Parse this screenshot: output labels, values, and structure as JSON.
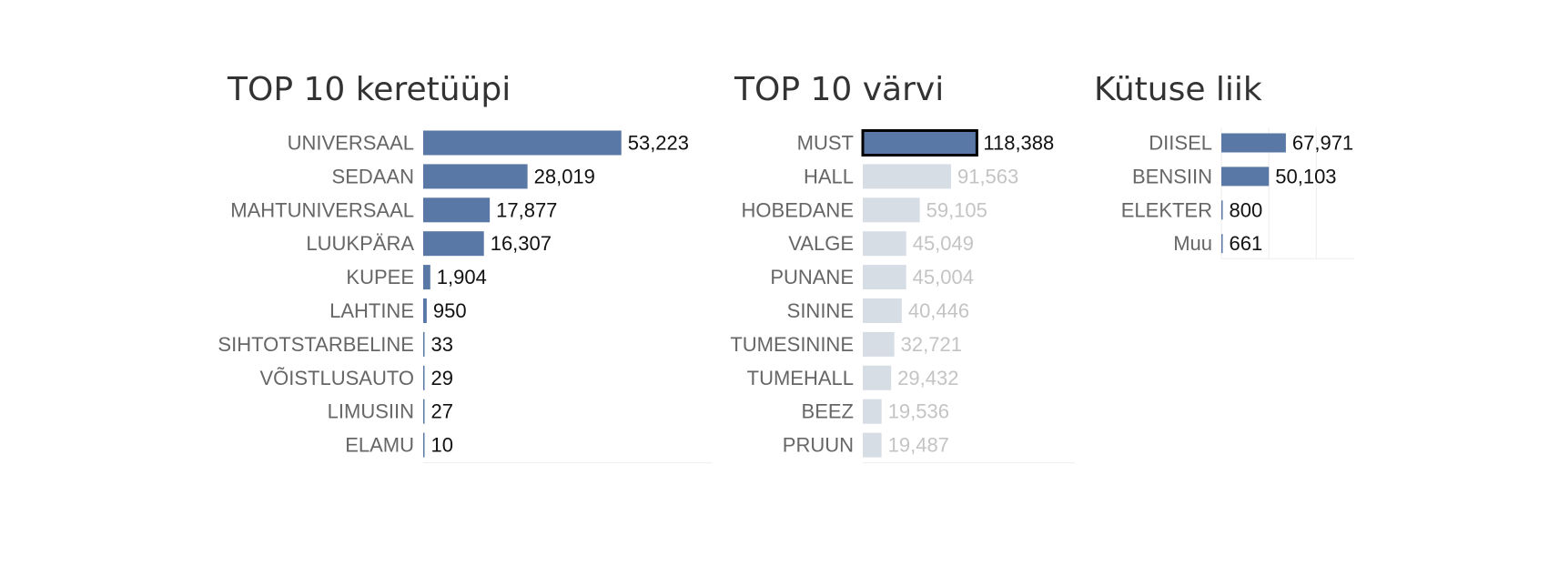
{
  "chart_data": [
    {
      "type": "bar",
      "orientation": "horizontal",
      "title": "TOP 10 keretüüpi",
      "categories": [
        "UNIVERSAAL",
        "SEDAAN",
        "MAHTUNIVERSAAL",
        "LUUKPÄRA",
        "KUPEE",
        "LAHTINE",
        "SIHTOTSTARBELINE",
        "VÕISTLUSAUTO",
        "LIMUSIIN",
        "ELAMU"
      ],
      "values": [
        53223,
        28019,
        17877,
        16307,
        1904,
        950,
        33,
        29,
        27,
        10
      ],
      "labels": [
        "53,223",
        "28,019",
        "17,877",
        "16,307",
        "1,904",
        "950",
        "33",
        "29",
        "27",
        "10"
      ],
      "highlight": [],
      "xlim": [
        0,
        77000
      ],
      "grid": false,
      "colors": {
        "bar": "#5978a5",
        "dim_bar": "#d7dde5"
      }
    },
    {
      "type": "bar",
      "orientation": "horizontal",
      "title": "TOP 10 värvi",
      "categories": [
        "MUST",
        "HALL",
        "HOBEDANE",
        "VALGE",
        "PUNANE",
        "SININE",
        "TUMESININE",
        "TUMEHALL",
        "BEEZ",
        "PRUUN"
      ],
      "values": [
        118388,
        91563,
        59105,
        45049,
        45004,
        40446,
        32721,
        29432,
        19536,
        19487
      ],
      "labels": [
        "118,388",
        "91,563",
        "59,105",
        "45,049",
        "45,004",
        "40,446",
        "32,721",
        "29,432",
        "19,536",
        "19,487"
      ],
      "highlight": [
        0
      ],
      "xlim": [
        0,
        220000
      ],
      "grid": false,
      "colors": {
        "bar": "#5978a5",
        "dim_bar": "#d7dde5"
      }
    },
    {
      "type": "bar",
      "orientation": "horizontal",
      "title": "Kütuse liik",
      "categories": [
        "DIISEL",
        "BENSIIN",
        "ELEKTER",
        "Muu"
      ],
      "values": [
        67971,
        50103,
        800,
        661
      ],
      "labels": [
        "67,971",
        "50,103",
        "800",
        "661"
      ],
      "highlight": [],
      "xlim": [
        0,
        140000
      ],
      "grid": true,
      "gridlines": [
        0,
        50000,
        100000
      ],
      "colors": {
        "bar": "#5978a5",
        "dim_bar": "#d7dde5"
      }
    }
  ]
}
